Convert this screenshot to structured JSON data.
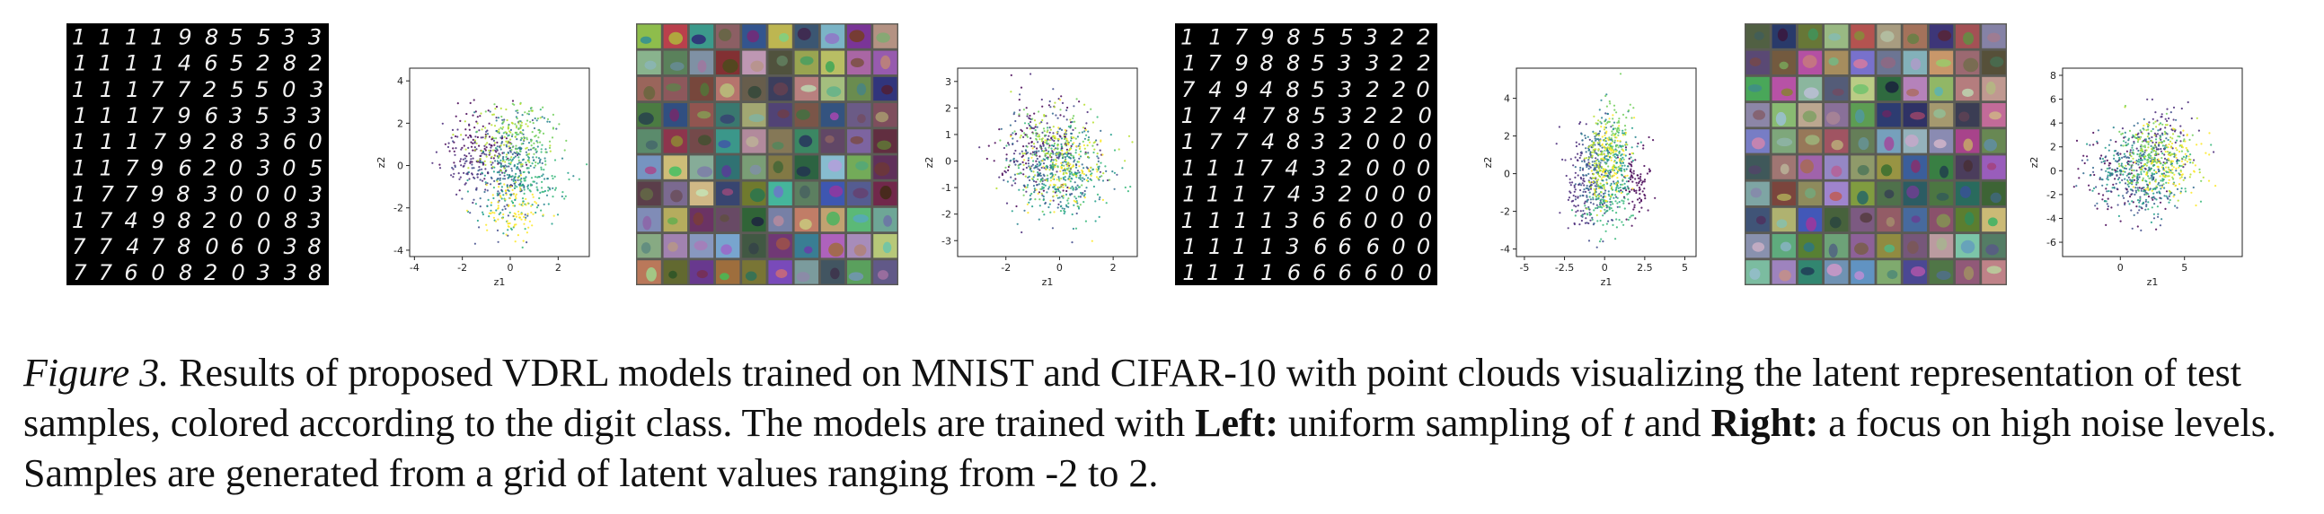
{
  "figure": {
    "caption": {
      "label": "Figure 3.",
      "part1": " Results of proposed VDRL models trained on MNIST and CIFAR-10 with point clouds visualizing the latent representation of test samples, colored according to the digit class. The models are trained with ",
      "left_label": "Left:",
      "part2": " uniform sampling of ",
      "var_t": "t",
      "part3": " and ",
      "right_label": "Right:",
      "part4": " a focus on high noise levels. Samples are generated from a grid of latent values ranging from -2 to 2."
    },
    "mnist_left_rows": [
      "1111985533",
      "1111465282",
      "1117725503",
      "1117963533",
      "1117928360",
      "1179620305",
      "1779830003",
      "1749820083",
      "7747806038",
      "7760820338"
    ],
    "mnist_right_rows": [
      "1179855322",
      "1798853322",
      "7494853220",
      "1747853220",
      "1774832000",
      "1117432000",
      "1117432000",
      "1111366000",
      "1111366600",
      "1111666600"
    ],
    "colors": {
      "viridis": [
        "#440154",
        "#482878",
        "#3e4989",
        "#31688e",
        "#26828e",
        "#1f9e89",
        "#35b779",
        "#6ece58",
        "#b5de2b",
        "#fde725"
      ]
    }
  },
  "chart_data": [
    {
      "type": "scatter",
      "title": "",
      "xlabel": "z1",
      "ylabel": "z2",
      "xticks": [
        -4,
        -2,
        0,
        2
      ],
      "yticks": [
        -4,
        -2,
        0,
        2,
        4
      ],
      "xlim": [
        -4.2,
        3.3
      ],
      "ylim": [
        -4.3,
        4.6
      ],
      "clusters": [
        {
          "class": 0,
          "cx": -1.2,
          "cy": 1.0,
          "sx": 0.8,
          "sy": 1.0
        },
        {
          "class": 1,
          "cx": -1.6,
          "cy": 0.4,
          "sx": 0.6,
          "sy": 0.8
        },
        {
          "class": 2,
          "cx": -0.6,
          "cy": -0.6,
          "sx": 0.8,
          "sy": 1.2
        },
        {
          "class": 3,
          "cx": 0.0,
          "cy": 0.2,
          "sx": 0.6,
          "sy": 1.2
        },
        {
          "class": 4,
          "cx": 0.5,
          "cy": 0.5,
          "sx": 0.9,
          "sy": 1.1
        },
        {
          "class": 5,
          "cx": 0.0,
          "cy": -1.0,
          "sx": 0.8,
          "sy": 1.0
        },
        {
          "class": 6,
          "cx": 0.8,
          "cy": -0.5,
          "sx": 0.7,
          "sy": 1.0
        },
        {
          "class": 7,
          "cx": 0.6,
          "cy": 1.4,
          "sx": 0.7,
          "sy": 0.8
        },
        {
          "class": 8,
          "cx": -0.4,
          "cy": 1.2,
          "sx": 0.8,
          "sy": 0.9
        },
        {
          "class": 9,
          "cx": 0.2,
          "cy": -2.0,
          "sx": 0.7,
          "sy": 0.8
        }
      ]
    },
    {
      "type": "scatter",
      "title": "",
      "xlabel": "z1",
      "ylabel": "z2",
      "xticks": [
        -2,
        0,
        2
      ],
      "yticks": [
        -3,
        -2,
        -1,
        0,
        1,
        2,
        3
      ],
      "xlim": [
        -3.8,
        2.9
      ],
      "ylim": [
        -3.6,
        3.5
      ],
      "clusters": [
        {
          "class": 0,
          "cx": -1.0,
          "cy": 0.6,
          "sx": 0.9,
          "sy": 0.9
        },
        {
          "class": 1,
          "cx": -0.6,
          "cy": 0.4,
          "sx": 0.8,
          "sy": 0.9
        },
        {
          "class": 2,
          "cx": -0.4,
          "cy": 0.0,
          "sx": 0.9,
          "sy": 0.9
        },
        {
          "class": 3,
          "cx": 0.0,
          "cy": -0.2,
          "sx": 0.9,
          "sy": 0.9
        },
        {
          "class": 4,
          "cx": 0.2,
          "cy": -0.3,
          "sx": 0.9,
          "sy": 0.9
        },
        {
          "class": 5,
          "cx": 0.2,
          "cy": -0.6,
          "sx": 0.9,
          "sy": 0.8
        },
        {
          "class": 6,
          "cx": 0.4,
          "cy": -0.4,
          "sx": 0.8,
          "sy": 0.8
        },
        {
          "class": 7,
          "cx": -0.2,
          "cy": 0.4,
          "sx": 0.9,
          "sy": 0.9
        },
        {
          "class": 8,
          "cx": 0.0,
          "cy": 0.2,
          "sx": 0.9,
          "sy": 0.9
        },
        {
          "class": 9,
          "cx": 0.3,
          "cy": -0.2,
          "sx": 0.8,
          "sy": 0.8
        }
      ]
    },
    {
      "type": "scatter",
      "title": "",
      "xlabel": "z1",
      "ylabel": "z2",
      "xticks": [
        -5.0,
        -2.5,
        0.0,
        2.5,
        5.0
      ],
      "yticks": [
        -4,
        -2,
        0,
        2,
        4
      ],
      "xlim": [
        -5.5,
        5.7
      ],
      "ylim": [
        -4.4,
        5.6
      ],
      "clusters": [
        {
          "class": 0,
          "cx": 2.0,
          "cy": -0.4,
          "sx": 0.5,
          "sy": 1.0
        },
        {
          "class": 1,
          "cx": -1.6,
          "cy": -0.6,
          "sx": 0.5,
          "sy": 1.4
        },
        {
          "class": 2,
          "cx": -0.4,
          "cy": -0.8,
          "sx": 0.6,
          "sy": 1.2
        },
        {
          "class": 3,
          "cx": -0.8,
          "cy": 0.2,
          "sx": 0.5,
          "sy": 1.2
        },
        {
          "class": 4,
          "cx": 0.2,
          "cy": 1.2,
          "sx": 0.5,
          "sy": 1.4
        },
        {
          "class": 5,
          "cx": 0.8,
          "cy": 0.4,
          "sx": 0.5,
          "sy": 1.0
        },
        {
          "class": 6,
          "cx": 0.2,
          "cy": -1.8,
          "sx": 0.7,
          "sy": 0.7
        },
        {
          "class": 7,
          "cx": 0.6,
          "cy": 1.8,
          "sx": 0.5,
          "sy": 1.0
        },
        {
          "class": 8,
          "cx": -0.4,
          "cy": 0.6,
          "sx": 0.4,
          "sy": 1.0
        },
        {
          "class": 9,
          "cx": 0.4,
          "cy": 0.8,
          "sx": 0.5,
          "sy": 1.2
        }
      ]
    },
    {
      "type": "scatter",
      "title": "",
      "xlabel": "z1",
      "ylabel": "z2",
      "xticks": [
        0,
        5
      ],
      "yticks": [
        -6,
        -4,
        -2,
        0,
        2,
        4,
        6,
        8
      ],
      "xlim": [
        -4.5,
        9.5
      ],
      "ylim": [
        -7.2,
        8.6
      ],
      "clusters": [
        {
          "class": 0,
          "cx": 0.0,
          "cy": -0.5,
          "sx": 1.8,
          "sy": 1.6
        },
        {
          "class": 1,
          "cx": 3.4,
          "cy": 2.6,
          "sx": 1.2,
          "sy": 1.5
        },
        {
          "class": 2,
          "cx": 1.0,
          "cy": -1.0,
          "sx": 1.8,
          "sy": 1.6
        },
        {
          "class": 3,
          "cx": 1.5,
          "cy": 0.0,
          "sx": 1.8,
          "sy": 1.8
        },
        {
          "class": 4,
          "cx": 1.8,
          "cy": 0.4,
          "sx": 1.8,
          "sy": 1.8
        },
        {
          "class": 5,
          "cx": 1.2,
          "cy": -0.5,
          "sx": 1.8,
          "sy": 1.6
        },
        {
          "class": 6,
          "cx": 2.5,
          "cy": 0.5,
          "sx": 1.6,
          "sy": 1.6
        },
        {
          "class": 7,
          "cx": 2.8,
          "cy": 1.2,
          "sx": 1.5,
          "sy": 1.5
        },
        {
          "class": 8,
          "cx": 3.2,
          "cy": 1.0,
          "sx": 1.5,
          "sy": 1.6
        },
        {
          "class": 9,
          "cx": 4.0,
          "cy": 0.6,
          "sx": 1.4,
          "sy": 1.6
        }
      ]
    }
  ]
}
